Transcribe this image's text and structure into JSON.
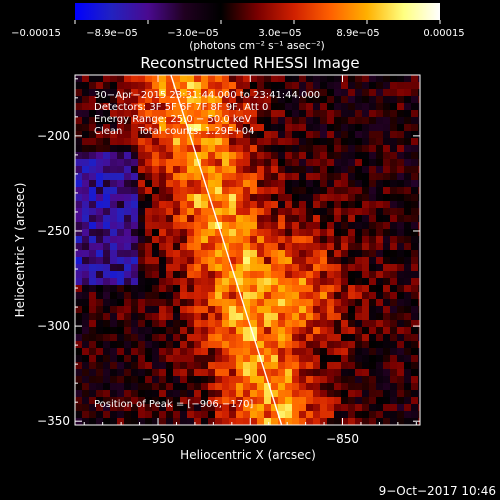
{
  "chart_data": {
    "type": "heatmap",
    "title": "Reconstructed RHESSI Image",
    "xlabel": "Heliocentric X (arcsec)",
    "ylabel": "Heliocentric Y (arcsec)",
    "xlim": [
      -995,
      -808
    ],
    "ylim": [
      -352,
      -168
    ],
    "x_ticks": [
      -950,
      -900,
      -850
    ],
    "x_tick_labels": [
      "−950",
      "−900",
      "−850"
    ],
    "y_ticks": [
      -350,
      -300,
      -250,
      -200
    ],
    "y_tick_labels": [
      "−350",
      "−300",
      "−250",
      "−200"
    ],
    "info_lines": [
      "30−Apr−2015 23:31:44.000 to 23:41:44.000",
      "Detectors: 3F 5F 6F 7F 8F 9F, Att 0",
      "Energy Range: 25.0 − 50.0 keV",
      "Clean     Total counts: 1.29E+04"
    ],
    "peak_label": "Position of Peak = [−906,−170]",
    "peak": [
      -906,
      -170
    ],
    "limb_line": {
      "x1": -943,
      "y1": -168,
      "x2": -883,
      "y2": -352
    },
    "colorbar": {
      "range": [
        -0.00015,
        0.00015
      ],
      "tick_labels": [
        "−0.00015",
        "−8.9e−05",
        "−3.0e−05",
        "3.0e−05",
        "8.9e−05",
        "0.00015"
      ],
      "unit_label": "(photons cm⁻² s⁻¹ asec⁻²)",
      "stops": [
        "#0000ff",
        "#2222c0",
        "#4a0a90",
        "#200020",
        "#000000",
        "#7a0000",
        "#d02000",
        "#ff6000",
        "#ffb000",
        "#ffff80",
        "#ffffff"
      ]
    },
    "grid": false,
    "legend": "none"
  },
  "footer": {
    "timestamp": "9−Oct−2017 10:46"
  }
}
